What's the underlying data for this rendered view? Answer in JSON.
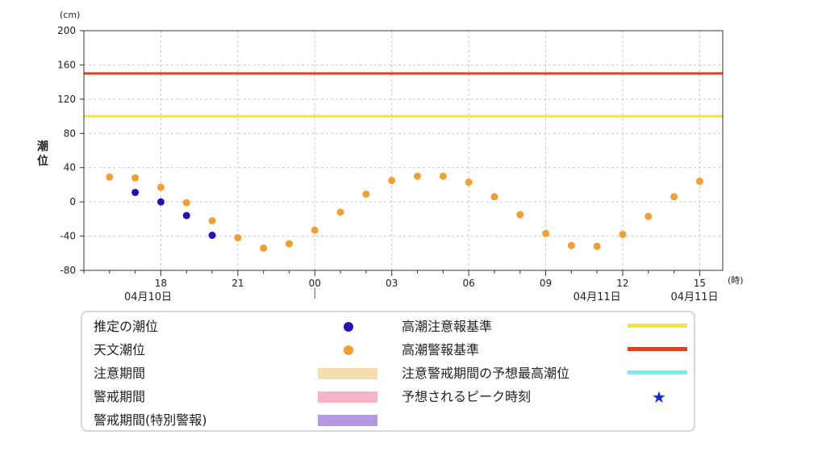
{
  "chart_data": {
    "type": "scatter",
    "ylabel": "潮位",
    "yunit": "(cm)",
    "xunit": "(時)",
    "ylim": [
      -80,
      200
    ],
    "yticks": [
      -80,
      -40,
      0,
      40,
      80,
      120,
      160,
      200
    ],
    "x_range_hours": [
      15,
      39.9
    ],
    "xticks": [
      {
        "hour": 18,
        "label": "18"
      },
      {
        "hour": 21,
        "label": "21"
      },
      {
        "hour": 24,
        "label": "00"
      },
      {
        "hour": 27,
        "label": "03"
      },
      {
        "hour": 30,
        "label": "06"
      },
      {
        "hour": 33,
        "label": "09"
      },
      {
        "hour": 36,
        "label": "12"
      },
      {
        "hour": 39,
        "label": "15"
      }
    ],
    "date_labels": [
      {
        "hour": 17.5,
        "label": "04月10日"
      },
      {
        "hour": 35,
        "label": "04月11日"
      },
      {
        "hour": 38.8,
        "label": "04月11日"
      }
    ],
    "grid": true,
    "thresholds": [
      {
        "name": "高潮注意報基準",
        "value": 100,
        "color": "#f2e33a"
      },
      {
        "name": "高潮警報基準",
        "value": 150,
        "color": "#e0401f"
      }
    ],
    "series": [
      {
        "name": "天文潮位",
        "color": "#f0a030",
        "points": [
          [
            16,
            29
          ],
          [
            17,
            28
          ],
          [
            18,
            17
          ],
          [
            19,
            -1
          ],
          [
            20,
            -22
          ],
          [
            21,
            -42
          ],
          [
            22,
            -54
          ],
          [
            23,
            -49
          ],
          [
            24,
            -33
          ],
          [
            25,
            -12
          ],
          [
            26,
            9
          ],
          [
            27,
            25
          ],
          [
            28,
            30
          ],
          [
            29,
            30
          ],
          [
            30,
            23
          ],
          [
            31,
            6
          ],
          [
            32,
            -15
          ],
          [
            33,
            -37
          ],
          [
            34,
            -51
          ],
          [
            35,
            -52
          ],
          [
            36,
            -38
          ],
          [
            37,
            -17
          ],
          [
            38,
            6
          ],
          [
            39,
            24
          ]
        ]
      },
      {
        "name": "推定の潮位",
        "color": "#2a0fb5",
        "points": [
          [
            17,
            11
          ],
          [
            18,
            0
          ],
          [
            19,
            -16
          ],
          [
            20,
            -39
          ]
        ]
      }
    ]
  },
  "legend": {
    "estimated": "推定の潮位",
    "astronomical": "天文潮位",
    "caution_period": "注意期間",
    "warning_period": "警戒期間",
    "special_warning_period": "警戒期間(特別警報)",
    "advisory_standard": "高潮注意報基準",
    "warning_standard": "高潮警報基準",
    "forecast_max": "注意警戒期間の予想最高潮位",
    "peak": "予想されるピーク時刻",
    "colors": {
      "estimated": "#2a0fb5",
      "astronomical": "#f0a030",
      "caution_period": "#f7deb0",
      "warning_period": "#f5b3cc",
      "special_warning_period": "#b39ae0",
      "advisory_standard": "#f2e33a",
      "warning_standard": "#e0401f",
      "forecast_max": "#6ef0f5",
      "peak": "#1428d8"
    }
  }
}
